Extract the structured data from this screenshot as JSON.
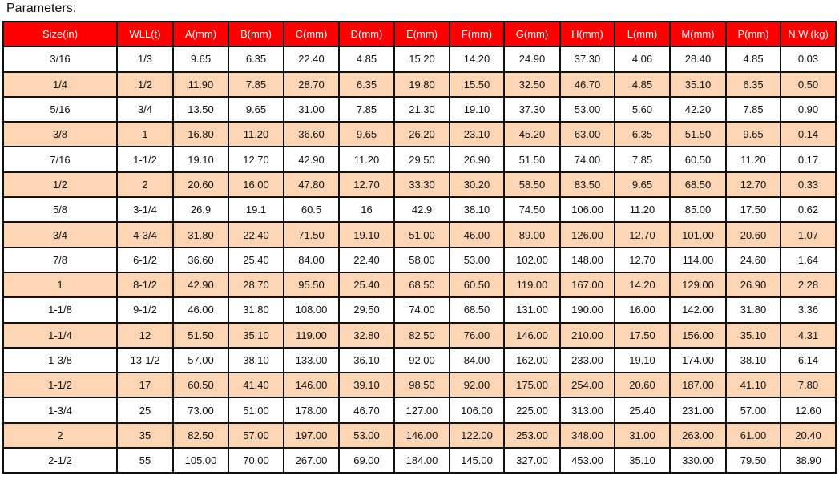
{
  "title": "Parameters:",
  "colors": {
    "header_bg": "#ff0000",
    "header_text": "#ffffff",
    "alt_row_bg": "#fcd5b4"
  },
  "columns": [
    "Size(in)",
    "WLL(t)",
    "A(mm)",
    "B(mm)",
    "C(mm)",
    "D(mm)",
    "E(mm)",
    "F(mm)",
    "G(mm)",
    "H(mm)",
    "L(mm)",
    "M(mm)",
    "P(mm)",
    "N.W.(kg)"
  ],
  "rows": [
    [
      "3/16",
      "1/3",
      "9.65",
      "6.35",
      "22.40",
      "4.85",
      "15.20",
      "14.20",
      "24.90",
      "37.30",
      "4.06",
      "28.40",
      "4.85",
      "0.03"
    ],
    [
      "1/4",
      "1/2",
      "11.90",
      "7.85",
      "28.70",
      "6.35",
      "19.80",
      "15.50",
      "32.50",
      "46.70",
      "4.85",
      "35.10",
      "6.35",
      "0.50"
    ],
    [
      "5/16",
      "3/4",
      "13.50",
      "9.65",
      "31.00",
      "7.85",
      "21.30",
      "19.10",
      "37.30",
      "53.00",
      "5.60",
      "42.20",
      "7.85",
      "0.90"
    ],
    [
      "3/8",
      "1",
      "16.80",
      "11.20",
      "36.60",
      "9.65",
      "26.20",
      "23.10",
      "45.20",
      "63.00",
      "6.35",
      "51.50",
      "9.65",
      "0.14"
    ],
    [
      "7/16",
      "1-1/2",
      "19.10",
      "12.70",
      "42.90",
      "11.20",
      "29.50",
      "26.90",
      "51.50",
      "74.00",
      "7.85",
      "60.50",
      "11.20",
      "0.17"
    ],
    [
      "1/2",
      "2",
      "20.60",
      "16.00",
      "47.80",
      "12.70",
      "33.30",
      "30.20",
      "58.50",
      "83.50",
      "9.65",
      "68.50",
      "12.70",
      "0.33"
    ],
    [
      "5/8",
      "3-1/4",
      "26.9",
      "19.1",
      "60.5",
      "16",
      "42.9",
      "38.10",
      "74.50",
      "106.00",
      "11.20",
      "85.00",
      "17.50",
      "0.62"
    ],
    [
      "3/4",
      "4-3/4",
      "31.80",
      "22.40",
      "71.50",
      "19.10",
      "51.00",
      "46.00",
      "89.00",
      "126.00",
      "12.70",
      "101.00",
      "20.60",
      "1.07"
    ],
    [
      "7/8",
      "6-1/2",
      "36.60",
      "25.40",
      "84.00",
      "22.40",
      "58.00",
      "53.00",
      "102.00",
      "148.00",
      "12.70",
      "114.00",
      "24.60",
      "1.64"
    ],
    [
      "1",
      "8-1/2",
      "42.90",
      "28.70",
      "95.50",
      "25.40",
      "68.50",
      "60.50",
      "119.00",
      "167.00",
      "14.20",
      "129.00",
      "26.90",
      "2.28"
    ],
    [
      "1-1/8",
      "9-1/2",
      "46.00",
      "31.80",
      "108.00",
      "29.50",
      "74.00",
      "68.50",
      "131.00",
      "190.00",
      "16.00",
      "142.00",
      "31.80",
      "3.36"
    ],
    [
      "1-1/4",
      "12",
      "51.50",
      "35.10",
      "119.00",
      "32.80",
      "82.50",
      "76.00",
      "146.00",
      "210.00",
      "17.50",
      "156.00",
      "35.10",
      "4.31"
    ],
    [
      "1-3/8",
      "13-1/2",
      "57.00",
      "38.10",
      "133.00",
      "36.10",
      "92.00",
      "84.00",
      "162.00",
      "233.00",
      "19.10",
      "174.00",
      "38.10",
      "6.14"
    ],
    [
      "1-1/2",
      "17",
      "60.50",
      "41.40",
      "146.00",
      "39.10",
      "98.50",
      "92.00",
      "175.00",
      "254.00",
      "20.60",
      "187.00",
      "41.10",
      "7.80"
    ],
    [
      "1-3/4",
      "25",
      "73.00",
      "51.00",
      "178.00",
      "46.70",
      "127.00",
      "106.00",
      "225.00",
      "313.00",
      "25.40",
      "231.00",
      "57.00",
      "12.60"
    ],
    [
      "2",
      "35",
      "82.50",
      "57.00",
      "197.00",
      "53.00",
      "146.00",
      "122.00",
      "253.00",
      "348.00",
      "31.00",
      "263.00",
      "61.00",
      "20.40"
    ],
    [
      "2-1/2",
      "55",
      "105.00",
      "70.00",
      "267.00",
      "69.00",
      "184.00",
      "145.00",
      "327.00",
      "453.00",
      "35.10",
      "330.00",
      "79.50",
      "38.90"
    ]
  ]
}
